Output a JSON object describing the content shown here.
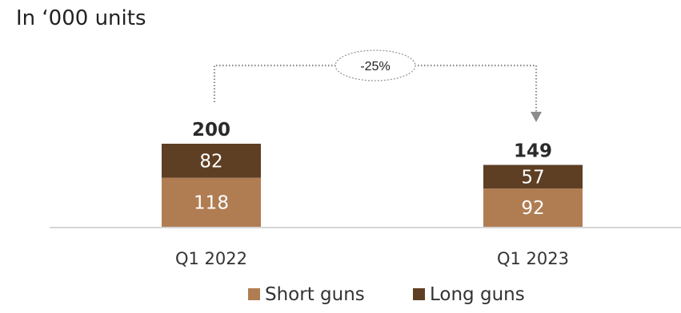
{
  "subtitle": "In ‘000 units",
  "colors": {
    "short": "#b07d53",
    "long": "#5e3f24",
    "text_dark": "#2a2a2a",
    "axis": "#c8c8c8",
    "connector": "#8c8c8c"
  },
  "chart_data": {
    "type": "bar",
    "stacked": true,
    "categories": [
      "Q1 2022",
      "Q1 2023"
    ],
    "series": [
      {
        "name": "Short guns",
        "values": [
          118,
          92
        ]
      },
      {
        "name": "Long guns",
        "values": [
          82,
          57
        ]
      }
    ],
    "totals": [
      200,
      149
    ],
    "change_label": "-25%",
    "ylim": [
      0,
      200
    ],
    "legend_position": "bottom",
    "grid": false
  }
}
